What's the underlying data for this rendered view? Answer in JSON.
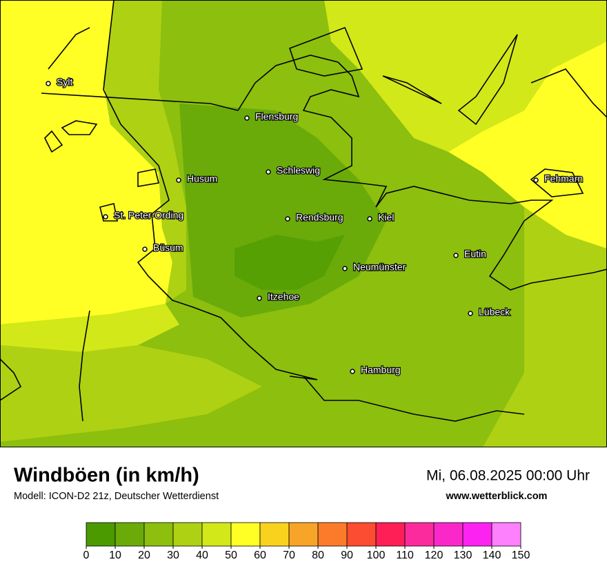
{
  "header": {
    "title": "Windböen (in km/h)",
    "subtitle": "Modell: ICON-D2 21z, Deutscher Wetterdienst",
    "datetime": "Mi, 06.08.2025 00:00 Uhr",
    "url": "www.wetterblick.com"
  },
  "cities": [
    "Sylt",
    "Flensburg",
    "Schleswig",
    "Husum",
    "Fehmarn",
    "St. Peter-Ording",
    "Rendsburg",
    "Kiel",
    "Büsum",
    "Eutin",
    "Neumünster",
    "Itzehoe",
    "Lübeck",
    "Hamburg"
  ],
  "legend": {
    "ticks": [
      0,
      10,
      20,
      30,
      40,
      50,
      60,
      70,
      80,
      90,
      100,
      110,
      120,
      130,
      140,
      150
    ],
    "colors": [
      "#4a9a00",
      "#6aab0a",
      "#8cbf0e",
      "#aed113",
      "#d2e818",
      "#ffff26",
      "#f9d21e",
      "#f8a428",
      "#fb7b2a",
      "#fc4c31",
      "#fd1f55",
      "#fb2b9e",
      "#fa28c8",
      "#fc22f0",
      "#fd80fd"
    ]
  }
}
